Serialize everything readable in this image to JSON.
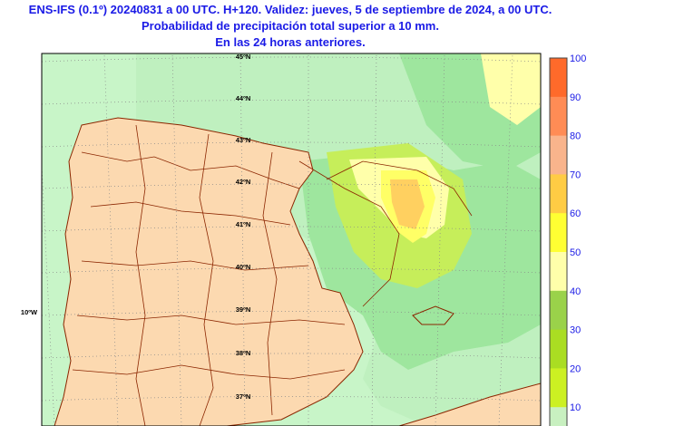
{
  "header": {
    "line1": "ENS-IFS (0.1º) 20240831 a 00 UTC. H+120. Validez: jueves, 5 de septiembre de 2024, a 00 UTC.",
    "line2": "Probabilidad de precipitación total superior a 10 mm.",
    "line3": "En las 24 horas anteriores."
  },
  "map": {
    "lat_labels": [
      "45ºN",
      "44ºN",
      "43ºN",
      "42ºN",
      "41ºN",
      "40ºN",
      "39ºN",
      "38ºN",
      "37ºN"
    ],
    "lon_label": "10ºW",
    "colors": {
      "land": "#fcd9b0",
      "sea_light": "#c8f5c8",
      "mid_green": "#9ee69e",
      "lime": "#c6ee5a",
      "yellow": "#ffff66",
      "orange": "#ffd060",
      "border": "#8b2500",
      "grid": "#888888"
    }
  },
  "legend": {
    "values": [
      "100",
      "90",
      "80",
      "70",
      "60",
      "50",
      "40",
      "30",
      "20",
      "10"
    ],
    "colors": [
      "#ff6a2a",
      "#ff8c55",
      "#f9b48c",
      "#ffcc44",
      "#ffff33",
      "#ffffaa",
      "#9ad24a",
      "#aadd22",
      "#ccf022",
      "#c8f0c0"
    ],
    "label_color": "#1a1ae6"
  }
}
